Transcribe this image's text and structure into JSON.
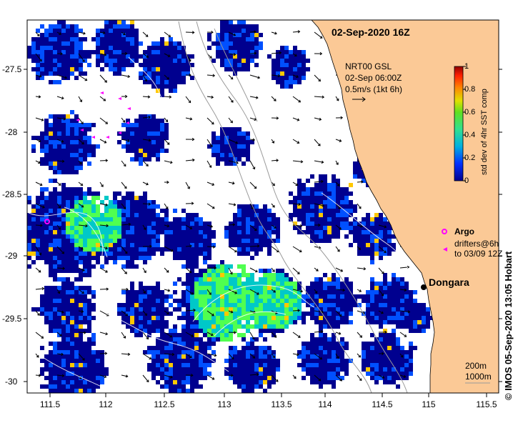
{
  "map": {
    "title": "02-Sep-2020 16Z",
    "land_color": "#fbc996",
    "xticks": [
      "111.5",
      "112",
      "112.5",
      "113",
      "113.5",
      "114",
      "114.5",
      "115",
      "115.5"
    ],
    "yticks": [
      "-27.5",
      "-28",
      "-28.5",
      "-29",
      "-29.5",
      "-30"
    ],
    "current_info": {
      "line1": "NRT00 GSL",
      "line2": "02-Sep 06:00Z",
      "line3": "0.5m/s (1kt 6h)"
    },
    "colorbar": {
      "label": "std dev of 4hr SST comp",
      "ticks": [
        "0",
        "0.2",
        "0.4",
        "0.6",
        "0.8",
        "1"
      ],
      "colors": [
        "#00008f",
        "#0050ff",
        "#00c8c8",
        "#50ff50",
        "#c8ff00",
        "#ffc800",
        "#ff5000",
        "#8f0000"
      ]
    },
    "legend": {
      "argo_label": "Argo",
      "drifter_label_1": "drifters@6h",
      "drifter_label_2": "to 03/09 12Z",
      "marker_color": "#ff00ff"
    },
    "place": {
      "name": "Dongara"
    },
    "isobaths": {
      "label1": "200m",
      "label2": "1000m"
    },
    "credit": "© IMOS 05-Sep-2020 13:05 Hobart"
  }
}
